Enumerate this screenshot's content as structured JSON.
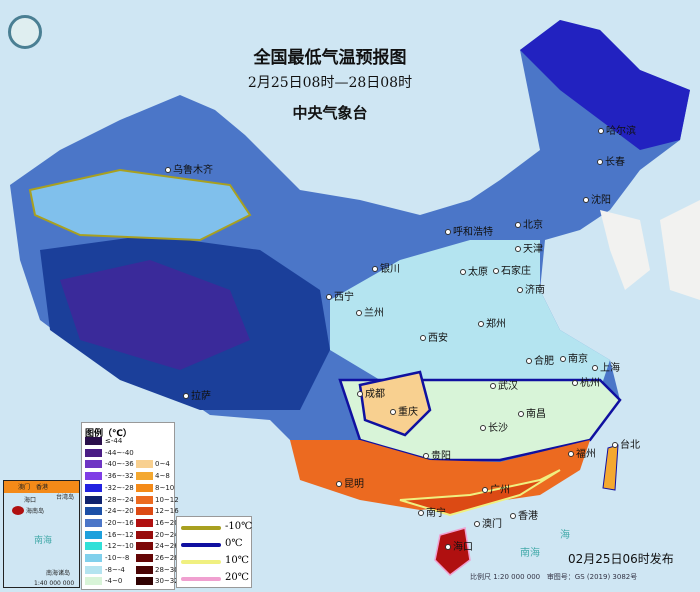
{
  "title": "全国最低气温预报图",
  "period": "2月25日08时—28日08时",
  "issuer": "中央气象台",
  "publish_time": "02月25日06时发布",
  "scale": "比例尺 1:20 000 000",
  "review_no": "审图号：GS (2019) 3082号",
  "legend": {
    "title": "图例（℃）",
    "cold": [
      {
        "label": "≤-44",
        "color": "#2a0f4a"
      },
      {
        "label": "-44~-40",
        "color": "#4a1d84"
      },
      {
        "label": "-40~-36",
        "color": "#6e35c4"
      },
      {
        "label": "-36~-32",
        "color": "#7f3ee6"
      },
      {
        "label": "-32~-28",
        "color": "#2222e0"
      },
      {
        "label": "-28~-24",
        "color": "#10236e"
      },
      {
        "label": "-24~-20",
        "color": "#1b4fa6"
      },
      {
        "label": "-20~-16",
        "color": "#4b76c8"
      },
      {
        "label": "-16~-12",
        "color": "#1ea0dc"
      },
      {
        "label": "-12~-10",
        "color": "#30e0d8"
      },
      {
        "label": "-10~-8",
        "color": "#80d0ec"
      },
      {
        "label": "-8~-4",
        "color": "#b4e4f0"
      },
      {
        "label": "-4~0",
        "color": "#d8f4d8"
      }
    ],
    "warm": [
      {
        "label": "0~4",
        "color": "#f8d090"
      },
      {
        "label": "4~8",
        "color": "#f4a830"
      },
      {
        "label": "8~10",
        "color": "#f48a18"
      },
      {
        "label": "10~12",
        "color": "#ec6a20"
      },
      {
        "label": "12~16",
        "color": "#dc4a14"
      },
      {
        "label": "16~20",
        "color": "#b01010"
      },
      {
        "label": "20~24",
        "color": "#980c0c"
      },
      {
        "label": "24~26",
        "color": "#7c0808"
      },
      {
        "label": "26~28",
        "color": "#640606"
      },
      {
        "label": "28~30",
        "color": "#4a0404"
      },
      {
        "label": "30~32",
        "color": "#300202"
      }
    ],
    "isolines": [
      {
        "label": "-10℃",
        "color": "#a8a020"
      },
      {
        "label": "0℃",
        "color": "#1010a0"
      },
      {
        "label": "10℃",
        "color": "#f0f080"
      },
      {
        "label": "20℃",
        "color": "#f0a0d0"
      }
    ]
  },
  "inset": {
    "labels": [
      "海口",
      "海南岛",
      "台湾岛",
      "南海",
      "南海诸岛",
      "1:40 000 000",
      "香港",
      "澳门"
    ]
  },
  "sea_labels": [
    "南海",
    "海"
  ],
  "cities": [
    "乌鲁木齐",
    "哈尔滨",
    "长春",
    "沈阳",
    "北京",
    "天津",
    "呼和浩特",
    "太原",
    "石家庄",
    "济南",
    "银川",
    "西宁",
    "兰州",
    "郑州",
    "西安",
    "合肥",
    "南京",
    "上海",
    "武汉",
    "杭州",
    "成都",
    "重庆",
    "长沙",
    "南昌",
    "福州",
    "台北",
    "贵阳",
    "昆明",
    "广州",
    "南宁",
    "澳门",
    "香港",
    "拉萨",
    "海口"
  ]
}
